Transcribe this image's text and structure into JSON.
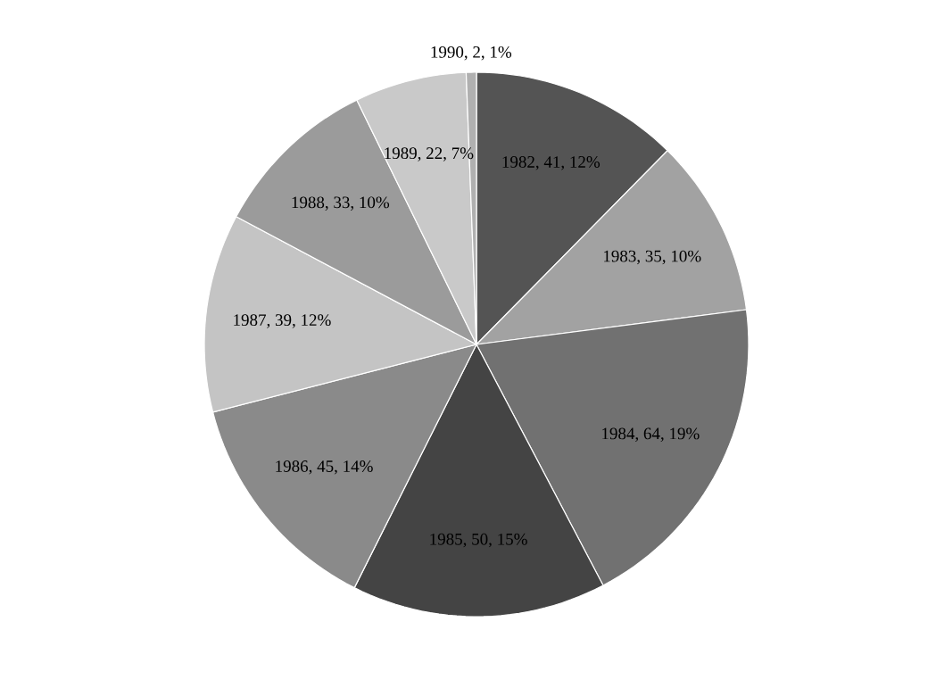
{
  "chart_data": {
    "type": "pie",
    "categories": [
      "1982",
      "1983",
      "1984",
      "1985",
      "1986",
      "1987",
      "1988",
      "1989",
      "1990"
    ],
    "values": [
      41,
      35,
      64,
      50,
      45,
      39,
      33,
      22,
      2
    ],
    "value_labels": [
      ", 41, 12%",
      ", 35, 10%",
      ", 64, 19%",
      ", 50, 15%",
      ", 45, 14%",
      ", 39, 12%",
      ", 33, 10%",
      ", 22, 7%",
      ", 2, 1%"
    ],
    "colors": [
      "#545454",
      "#a2a2a2",
      "#717171",
      "#444444",
      "#8a8a8a",
      "#c4c4c4",
      "#9b9b9b",
      "#c9c9c9",
      "#b0b0b0"
    ]
  }
}
